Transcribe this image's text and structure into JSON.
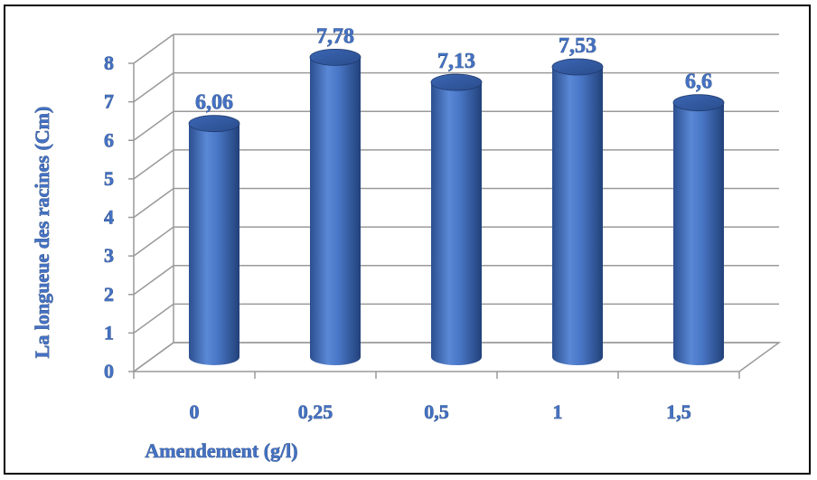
{
  "chart_data": {
    "type": "bar",
    "title": "",
    "categories": [
      "0",
      "0,25",
      "0,5",
      "1",
      "1,5"
    ],
    "values": [
      6.06,
      7.78,
      7.13,
      7.53,
      6.6
    ],
    "value_labels": [
      "6,06",
      "7,78",
      "7,13",
      "7,53",
      "6,6"
    ],
    "xlabel": "Amendement (g/l)",
    "ylabel": "La longueue des racines (Cm)",
    "ylim": [
      0,
      8
    ],
    "yticks": [
      "0",
      "1",
      "2",
      "3",
      "4",
      "5",
      "6",
      "7",
      "8"
    ],
    "grid": true,
    "legend": "none",
    "bar_style": "3d-cylinder"
  },
  "colors": {
    "bar": "#4472c4",
    "bar_dark": "#264478",
    "label_text": "#4472c4",
    "grid": "#9a9a9a"
  }
}
